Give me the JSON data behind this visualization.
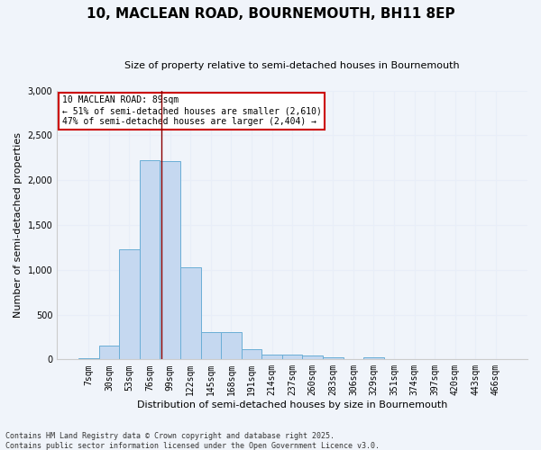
{
  "title_line1": "10, MACLEAN ROAD, BOURNEMOUTH, BH11 8EP",
  "title_line2": "Size of property relative to semi-detached houses in Bournemouth",
  "xlabel": "Distribution of semi-detached houses by size in Bournemouth",
  "ylabel": "Number of semi-detached properties",
  "footer_line1": "Contains HM Land Registry data © Crown copyright and database right 2025.",
  "footer_line2": "Contains public sector information licensed under the Open Government Licence v3.0.",
  "annotation_title": "10 MACLEAN ROAD: 89sqm",
  "annotation_line2": "← 51% of semi-detached houses are smaller (2,610)",
  "annotation_line3": "47% of semi-detached houses are larger (2,404) →",
  "bar_labels": [
    "7sqm",
    "30sqm",
    "53sqm",
    "76sqm",
    "99sqm",
    "122sqm",
    "145sqm",
    "168sqm",
    "191sqm",
    "214sqm",
    "237sqm",
    "260sqm",
    "283sqm",
    "306sqm",
    "329sqm",
    "351sqm",
    "374sqm",
    "397sqm",
    "420sqm",
    "443sqm",
    "466sqm"
  ],
  "bar_values": [
    15,
    150,
    1230,
    2220,
    2210,
    1030,
    300,
    300,
    110,
    55,
    50,
    40,
    25,
    0,
    25,
    0,
    0,
    0,
    0,
    0,
    0
  ],
  "bar_color": "#c5d8f0",
  "bar_edge_color": "#6aaed6",
  "vline_color": "#8b0000",
  "vline_index": 3.57,
  "ylim": [
    0,
    3000
  ],
  "yticks": [
    0,
    500,
    1000,
    1500,
    2000,
    2500,
    3000
  ],
  "background_color": "#f0f4fa",
  "grid_color": "#e8eef8",
  "annotation_box_color": "#ffffff",
  "annotation_box_edge_color": "#cc0000",
  "title_fontsize": 11,
  "subtitle_fontsize": 8,
  "ylabel_fontsize": 8,
  "xlabel_fontsize": 8,
  "tick_fontsize": 7,
  "footer_fontsize": 6
}
